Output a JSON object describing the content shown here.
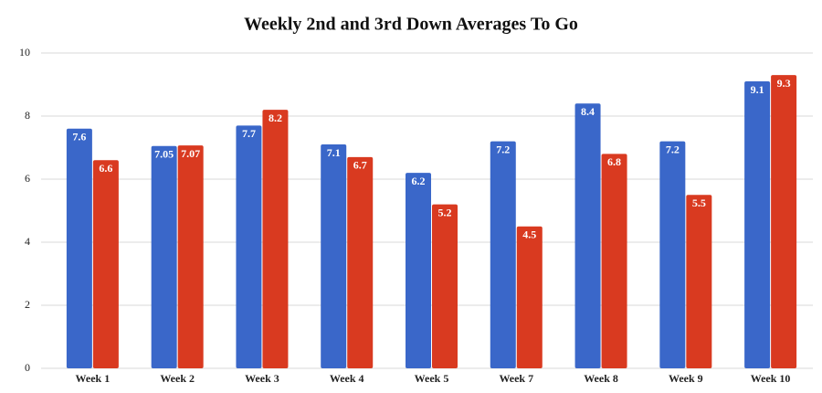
{
  "chart_data": {
    "type": "bar",
    "title": "Weekly 2nd and 3rd Down Averages To Go",
    "categories": [
      "Week 1",
      "Week 2",
      "Week 3",
      "Week 4",
      "Week 5",
      "Week 7",
      "Week 8",
      "Week 9",
      "Week 10"
    ],
    "series": [
      {
        "color": "#3a67c9",
        "values": [
          7.6,
          7.05,
          7.7,
          7.1,
          6.2,
          7.2,
          8.4,
          7.2,
          9.1
        ]
      },
      {
        "color": "#d93a20",
        "values": [
          6.6,
          7.07,
          8.2,
          6.7,
          5.2,
          4.5,
          6.8,
          5.5,
          9.3
        ]
      }
    ],
    "ylim": [
      0,
      10
    ],
    "yticks": [
      0,
      2,
      4,
      6,
      8,
      10
    ],
    "grid": true
  }
}
